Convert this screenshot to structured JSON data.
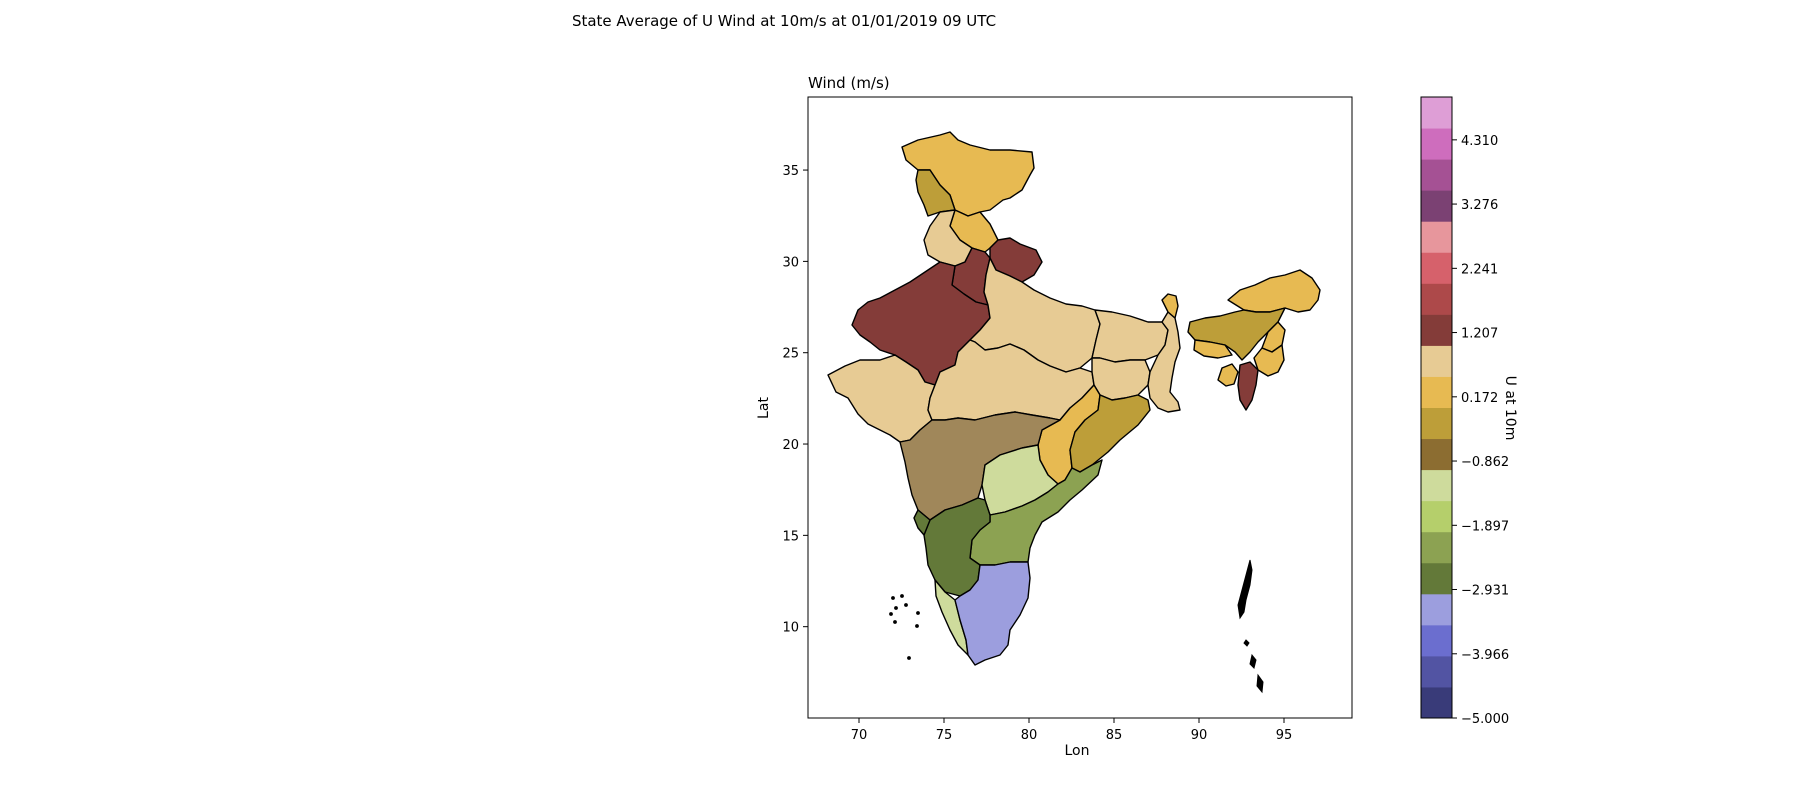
{
  "figure": {
    "title": "State Average of U Wind at 10m/s at 01/01/2019 09 UTC"
  },
  "map": {
    "subtitle": "Wind (m/s)",
    "xlabel": "Lon",
    "ylabel": "Lat",
    "xlim": [
      67,
      99
    ],
    "ylim": [
      5,
      39
    ],
    "xticks": [
      70,
      75,
      80,
      85,
      90,
      95
    ],
    "yticks": [
      10,
      15,
      20,
      25,
      30,
      35
    ]
  },
  "colorbar": {
    "label": "U at 10m",
    "range": [
      -5.0,
      5.0
    ],
    "tick_labels": [
      "−5.000",
      "−3.966",
      "−2.931",
      "−1.897",
      "−0.862",
      "0.172",
      "1.207",
      "2.241",
      "3.276",
      "4.310"
    ],
    "tick_values": [
      -5.0,
      -3.966,
      -2.931,
      -1.897,
      -0.862,
      0.172,
      1.207,
      2.241,
      3.276,
      4.31
    ],
    "colors": [
      "#393b79",
      "#5254a3",
      "#6b6ecf",
      "#9c9ede",
      "#637939",
      "#8ca252",
      "#b5cf6b",
      "#cedb9c",
      "#8c6d31",
      "#bd9e39",
      "#e7ba52",
      "#e7cb94",
      "#843c39",
      "#ad494a",
      "#d6616b",
      "#e7969c",
      "#7b4173",
      "#a55194",
      "#ce6dbd",
      "#de9ed6"
    ]
  },
  "regions": [
    {
      "name": "Jammu and Kashmir",
      "color": "#e7ba52"
    },
    {
      "name": "Ladakh west",
      "color": "#bd9e39"
    },
    {
      "name": "Himachal Pradesh",
      "color": "#e7ba52"
    },
    {
      "name": "Punjab",
      "color": "#e7cb94"
    },
    {
      "name": "Uttarakhand",
      "color": "#843c39"
    },
    {
      "name": "Haryana",
      "color": "#843c39"
    },
    {
      "name": "Rajasthan",
      "color": "#843c39"
    },
    {
      "name": "Uttar Pradesh",
      "color": "#e7cb94"
    },
    {
      "name": "Gujarat",
      "color": "#e7cb94"
    },
    {
      "name": "Madhya Pradesh",
      "color": "#e7cb94"
    },
    {
      "name": "Bihar",
      "color": "#e7cb94"
    },
    {
      "name": "Jharkhand",
      "color": "#e7cb94"
    },
    {
      "name": "West Bengal",
      "color": "#e7cb94"
    },
    {
      "name": "Chhattisgarh",
      "color": "#e7ba52"
    },
    {
      "name": "Odisha",
      "color": "#bd9e39"
    },
    {
      "name": "Maharashtra",
      "color": "#a0875a"
    },
    {
      "name": "Telangana",
      "color": "#cedb9c"
    },
    {
      "name": "Andhra Pradesh",
      "color": "#8ca252"
    },
    {
      "name": "Karnataka",
      "color": "#637939"
    },
    {
      "name": "Goa",
      "color": "#637939"
    },
    {
      "name": "Kerala",
      "color": "#cedb9c"
    },
    {
      "name": "Tamil Nadu",
      "color": "#9c9ede"
    },
    {
      "name": "Sikkim",
      "color": "#e7ba52"
    },
    {
      "name": "Arunachal Pradesh",
      "color": "#e7ba52"
    },
    {
      "name": "Assam",
      "color": "#bd9e39"
    },
    {
      "name": "Meghalaya",
      "color": "#e7ba52"
    },
    {
      "name": "Nagaland",
      "color": "#e7ba52"
    },
    {
      "name": "Manipur",
      "color": "#e7ba52"
    },
    {
      "name": "Tripura",
      "color": "#e7ba52"
    },
    {
      "name": "Mizoram",
      "color": "#843c39"
    }
  ]
}
